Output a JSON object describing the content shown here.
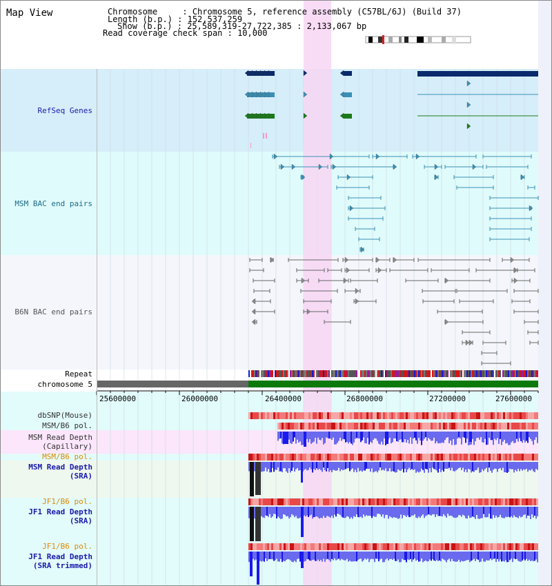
{
  "window": {
    "title": "Map View"
  },
  "header": {
    "chromosome_label": "Chromosome",
    "chromosome_value": "Chromosome 5, reference assembly (C57BL/6J) (Build 37)",
    "length_label": "Length (b.p.)",
    "length_value": "152,537,259",
    "show_label": "Show (b.p.)",
    "show_value": "25,589,319-27,722,385 : 2,133,067 bp",
    "coverage_label": "Read coverage check span",
    "coverage_value": "10,000"
  },
  "tracks": {
    "refseq": {
      "label": "RefSeq Genes",
      "color": "#1a1aaa"
    },
    "msm_bac": {
      "label": "MSM BAC end pairs",
      "color": "#1a6c8a"
    },
    "b6n_bac": {
      "label": "B6N BAC end pairs",
      "color": "#555555"
    },
    "repeat": {
      "label": "Repeat"
    },
    "chromosome": {
      "label": "chromosome 5"
    },
    "dbsnp": {
      "label": "dbSNP(Mouse)"
    },
    "msm_b6_pol_1": {
      "label": "MSM/B6 pol."
    },
    "msm_depth_cap": {
      "label": "MSM Read Depth\n(Capillary)"
    },
    "msm_b6_pol_2": {
      "label": "MSM/B6 pol.",
      "color": "#e08a00"
    },
    "msm_depth_sra": {
      "label": "MSM Read Depth\n(SRA)",
      "color": "#1a1aaa"
    },
    "jf1_b6_pol_1": {
      "label": "JF1/B6 pol.",
      "color": "#e08a00"
    },
    "jf1_depth_sra": {
      "label": "JF1 Read Depth\n(SRA)",
      "color": "#1a1aaa"
    },
    "jf1_b6_pol_2": {
      "label": "JF1/B6 pol.",
      "color": "#e08a00"
    },
    "jf1_depth_trim": {
      "label": "JF1 Read Depth\n(SRA trimmed)",
      "color": "#1a1aaa"
    }
  },
  "axis": {
    "ticks": [
      "25600000",
      "26000000",
      "26400000",
      "26800000",
      "27200000",
      "27600000"
    ]
  },
  "colors": {
    "refseq_bg": "#d6eefa",
    "bac_bg": "#e0fbfb",
    "highlight": "#f7d6f3",
    "gene_dark": "#0a2a6c",
    "gene_mid": "#3a8fb5",
    "gene_green": "#1b7a1b",
    "depth_blue": "#2a2aee",
    "chrom_green": "#0b7a0b"
  }
}
